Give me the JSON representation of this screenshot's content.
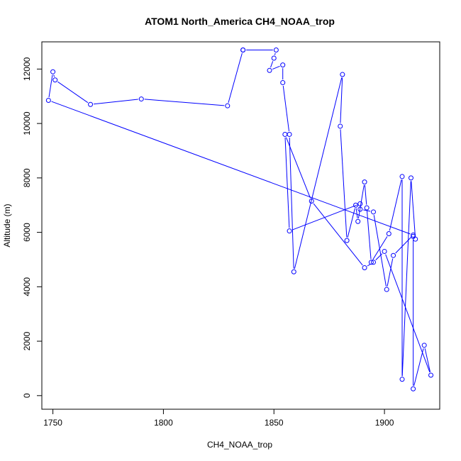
{
  "chart_data": {
    "type": "line",
    "title": "ATOM1 North_America CH4_NOAA_trop",
    "xlabel": "CH4_NOAA_trop",
    "ylabel": "Altitude (m)",
    "xlim": [
      1745,
      1925
    ],
    "ylim": [
      -500,
      13000
    ],
    "x_ticks": [
      1750,
      1800,
      1850,
      1900
    ],
    "y_ticks": [
      0,
      2000,
      4000,
      6000,
      8000,
      10000,
      12000
    ],
    "x_tick_labels": [
      "1750",
      "1800",
      "1850",
      "1900"
    ],
    "y_tick_labels": [
      "0",
      "2000",
      "4000",
      "6000",
      "8000",
      "10000",
      "12000"
    ],
    "grid": false,
    "legend": "none",
    "series_color": "#0000ff",
    "series": [
      {
        "x": [
          1836,
          1851,
          1850,
          1848,
          1854,
          1854,
          1857,
          1859,
          1881,
          1880,
          1883,
          1887,
          1888,
          1891,
          1892,
          1894,
          1902,
          1908,
          1908,
          1912,
          1914,
          1913,
          1913,
          1918,
          1921,
          1900,
          1895,
          1891,
          1867,
          1855,
          1857,
          1889,
          1889,
          1895,
          1901,
          1904,
          1913,
          1748,
          1750,
          1751,
          1767,
          1790,
          1829,
          1836
        ],
        "y": [
          12700,
          12700,
          12400,
          11950,
          12150,
          11500,
          9600,
          4550,
          11800,
          9900,
          5700,
          7000,
          6400,
          7850,
          6900,
          4900,
          5950,
          8050,
          600,
          8000,
          5750,
          5850,
          250,
          1850,
          750,
          5300,
          4900,
          4700,
          7150,
          9600,
          6050,
          7050,
          6850,
          6750,
          3900,
          5150,
          5900,
          10850,
          11900,
          11600,
          10700,
          10900,
          10650,
          12700
        ]
      }
    ]
  }
}
